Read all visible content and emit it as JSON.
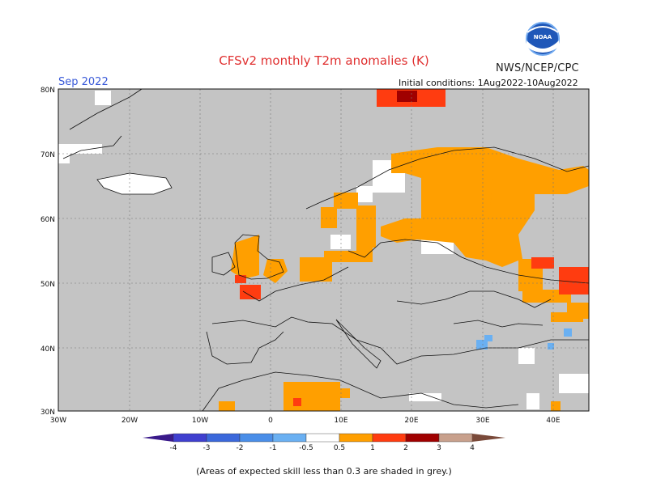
{
  "header": {
    "title": "CFSv2 monthly T2m anomalies (K)",
    "agency": "NWS/NCEP/CPC",
    "period": "Sep 2022",
    "initial_conditions": "Initial conditions: 1Aug2022-10Aug2022",
    "logo_text": "NOAA"
  },
  "map": {
    "lat_labels": [
      "80N",
      "70N",
      "60N",
      "50N",
      "40N",
      "30N"
    ],
    "lon_labels": [
      "30W",
      "20W",
      "10W",
      "0",
      "10E",
      "20E",
      "30E",
      "40E"
    ],
    "grey_color": "#c4c4c4"
  },
  "colorbar": {
    "labels": [
      "-4",
      "-3",
      "-2",
      "-1",
      "-0.5",
      "0.5",
      "1",
      "2",
      "3",
      "4"
    ],
    "colors": [
      "#3a1a8a",
      "#3f3fcf",
      "#3b68db",
      "#4a8ee8",
      "#6ab0f2",
      "#ffffff",
      "#ff9f00",
      "#ff3c10",
      "#a00000",
      "#c8a08c",
      "#7a4a3a"
    ]
  },
  "footer": {
    "note": "(Areas of expected skill less than 0.3 are shaded in grey.)"
  }
}
